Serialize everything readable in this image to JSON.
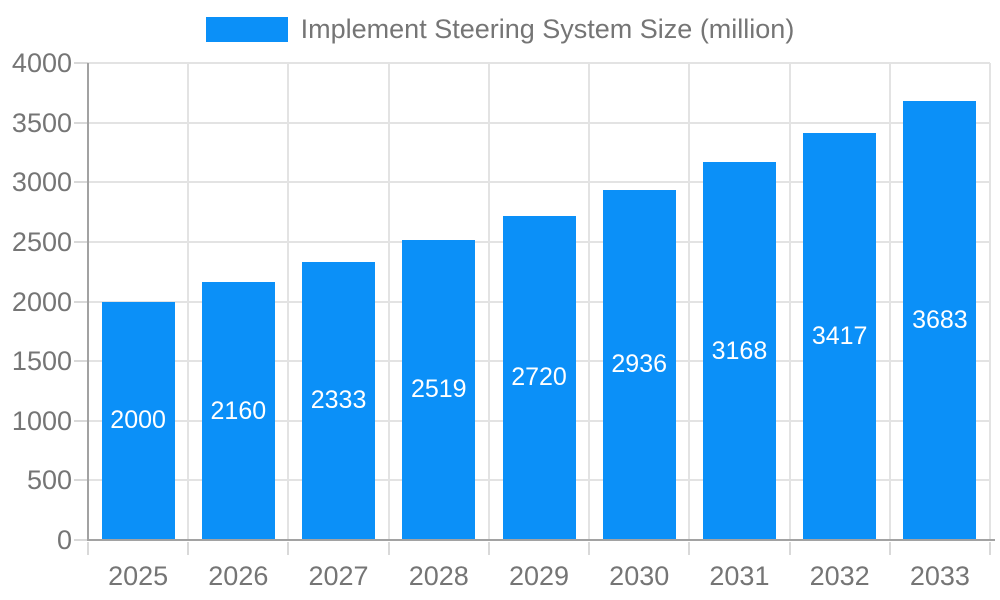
{
  "legend": {
    "label": "Implement Steering System Size (million)"
  },
  "chart_data": {
    "type": "bar",
    "title": "Implement Steering System Size (million)",
    "categories": [
      "2025",
      "2026",
      "2027",
      "2028",
      "2029",
      "2030",
      "2031",
      "2032",
      "2033"
    ],
    "values": [
      2000,
      2160,
      2333,
      2519,
      2720,
      2936,
      3168,
      3417,
      3683
    ],
    "xlabel": "",
    "ylabel": "",
    "ylim": [
      0,
      4000
    ],
    "ytick_step": 500,
    "yticks": [
      0,
      500,
      1000,
      1500,
      2000,
      2500,
      3000,
      3500,
      4000
    ],
    "grid": true,
    "legend_position": "top-center",
    "colors": {
      "bar": "#0b90f8",
      "value_label": "#ffffff",
      "axis_line": "#a2a2a2",
      "gridline": "#e3e3e3",
      "tick": "#d9d9d9",
      "text": "#757575",
      "background": "#ffffff"
    }
  }
}
